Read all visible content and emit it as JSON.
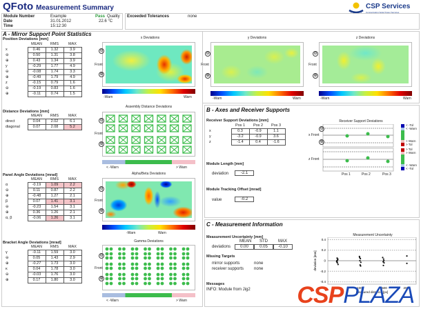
{
  "header": {
    "app": "QFoto",
    "subtitle": "Measurement Summary",
    "company": "CSP Services",
    "tagline": "Concentrating Solar Power Services"
  },
  "info": {
    "module_number_label": "Module Number",
    "module_number": "Example",
    "date_label": "Date",
    "date": "31.01.2012",
    "time_label": "Time",
    "time": "15:12:30",
    "pass": "Pass",
    "quality_label": "Quality",
    "temperature": "22.6 °C",
    "exceeded_label": "Exceeded Tolerances",
    "exceeded_value": "none"
  },
  "sectionA": {
    "title": "A - Mirror Support Point Statistics",
    "cols": [
      "MEAN",
      "RMS",
      "MAX"
    ],
    "position": {
      "title": "Position Deviations [mm]",
      "rows": [
        {
          "label": "x",
          "v": [
            "0.46",
            "1.32",
            "3.9"
          ],
          "red": [
            false,
            false,
            false
          ]
        },
        {
          "label": "⊖",
          "v": [
            "0.50",
            "1.31",
            "3.8"
          ],
          "red": [
            false,
            false,
            false
          ]
        },
        {
          "label": "⊕",
          "v": [
            "0.43",
            "1.34",
            "3.9"
          ],
          "red": [
            false,
            false,
            false
          ]
        },
        {
          "label": "y",
          "v": [
            "-0.29",
            "1.77",
            "4.9"
          ],
          "red": [
            false,
            false,
            false
          ]
        },
        {
          "label": "⊖",
          "v": [
            "-0.08",
            "1.74",
            "3.3"
          ],
          "red": [
            false,
            false,
            false
          ]
        },
        {
          "label": "⊕",
          "v": [
            "-0.49",
            "1.79",
            "4.9"
          ],
          "red": [
            false,
            false,
            false
          ]
        },
        {
          "label": "z",
          "v": [
            "-0.15",
            "0.79",
            "1.6"
          ],
          "red": [
            false,
            false,
            false
          ]
        },
        {
          "label": "⊖",
          "v": [
            "-0.19",
            "0.83",
            "1.6"
          ],
          "red": [
            false,
            false,
            false
          ]
        },
        {
          "label": "⊕",
          "v": [
            "-0.11",
            "0.74",
            "1.5"
          ],
          "red": [
            false,
            false,
            false
          ]
        }
      ]
    },
    "distance": {
      "title": "Distance Deviations [mm]",
      "rows": [
        {
          "label": "direct",
          "v": [
            "0.04",
            "2.02",
            "6.1"
          ],
          "red": [
            false,
            false,
            false
          ]
        },
        {
          "label": "diagonal",
          "v": [
            "0.07",
            "2.08",
            "5.2"
          ],
          "red": [
            false,
            false,
            true
          ]
        }
      ]
    },
    "panel": {
      "title": "Panel Angle Deviations [mrad]",
      "rows": [
        {
          "label": "α",
          "v": [
            "-0.19",
            "1.09",
            "2.2"
          ],
          "red": [
            false,
            true,
            true
          ]
        },
        {
          "label": "⊖",
          "v": [
            "0.11",
            "0.87",
            "2.2"
          ],
          "red": [
            false,
            false,
            false
          ]
        },
        {
          "label": "⊕",
          "v": [
            "-0.48",
            "1.27",
            "2.1"
          ],
          "red": [
            false,
            false,
            false
          ]
        },
        {
          "label": "β",
          "v": [
            "0.07",
            "1.41",
            "3.1"
          ],
          "red": [
            false,
            true,
            true
          ]
        },
        {
          "label": "⊖",
          "v": [
            "-0.23",
            "1.54",
            "3.1"
          ],
          "red": [
            false,
            false,
            false
          ]
        },
        {
          "label": "⊕",
          "v": [
            "0.36",
            "1.26",
            "2.1"
          ],
          "red": [
            false,
            false,
            false
          ]
        },
        {
          "label": "α, β",
          "v": [
            "-0.06",
            "1.26",
            "3.1"
          ],
          "red": [
            false,
            true,
            false
          ]
        }
      ]
    },
    "bracket": {
      "title": "Bracket Angle Deviations [mrad]",
      "rows": [
        {
          "label": "γ",
          "v": [
            "-0.11",
            "1.59",
            "3.0"
          ],
          "red": [
            false,
            false,
            false
          ]
        },
        {
          "label": "⊖",
          "v": [
            "0.05",
            "1.43",
            "2.9"
          ],
          "red": [
            false,
            false,
            false
          ]
        },
        {
          "label": "⊕",
          "v": [
            "-0.27",
            "1.73",
            "3.0"
          ],
          "red": [
            false,
            false,
            false
          ]
        },
        {
          "label": "κ",
          "v": [
            "0.04",
            "1.78",
            "3.0"
          ],
          "red": [
            false,
            false,
            false
          ]
        },
        {
          "label": "⊖",
          "v": [
            "-0.03",
            "1.76",
            "3.0"
          ],
          "red": [
            false,
            false,
            false
          ]
        },
        {
          "label": "⊕",
          "v": [
            "0.17",
            "1.80",
            "3.0"
          ],
          "red": [
            false,
            false,
            false
          ]
        }
      ]
    },
    "plots": {
      "x": "x Deviations",
      "y": "y Deviations",
      "z": "z Deviations",
      "assembly": "Assembly Distance Deviations",
      "alphabeta": "Alpha/Beta Deviations",
      "gamma": "Gamma Deviations",
      "front": "Front",
      "minus": "⊖",
      "plus": "⊕",
      "neg_warn": "-Warn",
      "pos_warn": "Warn",
      "lt_warn": "< -Warn",
      "gt_warn": "> Warn"
    }
  },
  "sectionB": {
    "title": "B - Axes and Receiver Supports",
    "receiver": {
      "title": "Receiver Support Deviations [mm]",
      "cols": [
        "Pos 1",
        "Pos 2",
        "Pos 3"
      ],
      "rows": [
        {
          "label": "x",
          "v": [
            "0.3",
            "-0.9",
            "1.1"
          ]
        },
        {
          "label": "y",
          "v": [
            "-3.2",
            "-0.9",
            "3.6"
          ]
        },
        {
          "label": "z",
          "v": [
            "-1.4",
            "0.4",
            "-1.6"
          ]
        }
      ]
    },
    "module_length": {
      "title": "Module Length [mm]",
      "label": "deviation",
      "value": "-2.1"
    },
    "tracking": {
      "title": "Module Tracking Offset [mrad]",
      "label": "value",
      "value": "-0.2"
    },
    "chart": {
      "title": "Receiver Support Deviations",
      "x_front": "x Front",
      "z_front": "z Front",
      "positions": [
        "Pos 1",
        "Pos 2",
        "Pos 3"
      ],
      "legend_top": [
        "< -Tol",
        "< -Warn",
        "> Warn",
        "> Tol"
      ],
      "legend_bot": [
        "> Tol",
        "> Warn",
        "< -Warn",
        "< -Tol"
      ]
    }
  },
  "sectionC": {
    "title": "C - Measurement Information",
    "uncertainty": {
      "title": "Measurement Uncertainty [mm]",
      "cols": [
        "MEAN",
        "STD",
        "MAX"
      ],
      "label": "deviations",
      "v": [
        "0.00",
        "0.05",
        "-0.10"
      ]
    },
    "missing": {
      "title": "Missing Targets",
      "rows": [
        {
          "label": "mirror supports",
          "value": "none"
        },
        {
          "label": "receiver supports",
          "value": "none"
        }
      ]
    },
    "messages": {
      "title": "Messages",
      "text": "INFO: Module from Jig2"
    }
  },
  "chart_data": {
    "type": "scatter",
    "title": "Measurement Uncertainty",
    "xlabel": "measured distance [px]",
    "ylabel": "deviation [mm]",
    "ylim": [
      -0.4,
      0.4
    ],
    "yticks": [
      "0.4",
      "0.2",
      "0",
      "-0.2",
      "-0.4"
    ],
    "xticks": [
      "500",
      "1000",
      "1500",
      "2000"
    ],
    "grid": true,
    "series": [
      {
        "name": "deviations",
        "points": [
          [
            500,
            0.05
          ],
          [
            510,
            0.02
          ],
          [
            490,
            -0.02
          ],
          [
            505,
            -0.04
          ],
          [
            520,
            -0.07
          ],
          [
            495,
            0.0
          ],
          [
            515,
            0.03
          ],
          [
            500,
            -0.01
          ],
          [
            980,
            0.08
          ],
          [
            1000,
            0.04
          ],
          [
            990,
            0.0
          ],
          [
            1010,
            -0.03
          ],
          [
            995,
            -0.08
          ],
          [
            1005,
            -0.1
          ],
          [
            985,
            0.06
          ],
          [
            1480,
            0.06
          ],
          [
            1500,
            0.03
          ],
          [
            1490,
            -0.02
          ],
          [
            1510,
            -0.04
          ],
          [
            1495,
            -0.09
          ],
          [
            1505,
            0.0
          ],
          [
            2000,
            0.09
          ],
          [
            2000,
            -0.05
          ]
        ]
      }
    ]
  },
  "watermark": {
    "part1": "CSP",
    "part2": "PLAZA"
  }
}
